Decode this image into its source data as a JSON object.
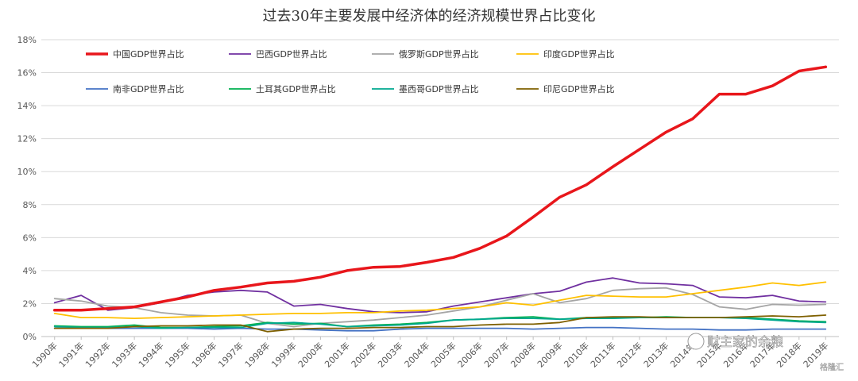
{
  "chart_data": {
    "type": "line",
    "title": "过去30年主要发展中经济体的经济规模世界占比变化",
    "xlabel": "",
    "ylabel": "",
    "ylim": [
      0,
      18
    ],
    "y_ticks": [
      "0%",
      "2%",
      "4%",
      "6%",
      "8%",
      "10%",
      "12%",
      "14%",
      "16%",
      "18%"
    ],
    "grid": true,
    "legend_position": "top",
    "categories": [
      "1990年",
      "1991年",
      "1992年",
      "1993年",
      "1994年",
      "1995年",
      "1996年",
      "1997年",
      "1998年",
      "1999年",
      "2000年",
      "2001年",
      "2002年",
      "2003年",
      "2004年",
      "2005年",
      "2006年",
      "2007年",
      "2008年",
      "2009年",
      "2010年",
      "2011年",
      "2012年",
      "2013年",
      "2014年",
      "2015年",
      "2016年",
      "2017年",
      "2018年",
      "2019年"
    ],
    "series": [
      {
        "name": "中国GDP世界占比",
        "color": "#e8161b",
        "bold": true,
        "values": [
          1.6,
          1.6,
          1.7,
          1.8,
          2.1,
          2.4,
          2.8,
          3.0,
          3.25,
          3.35,
          3.6,
          4.0,
          4.2,
          4.25,
          4.5,
          4.8,
          5.35,
          6.1,
          7.25,
          8.45,
          9.2,
          10.3,
          11.35,
          12.4,
          13.2,
          14.7,
          14.7,
          15.2,
          16.1,
          16.35
        ]
      },
      {
        "name": "巴西GDP世界占比",
        "color": "#7030a0",
        "values": [
          2.05,
          2.5,
          1.6,
          1.75,
          2.05,
          2.5,
          2.7,
          2.8,
          2.7,
          1.85,
          1.95,
          1.7,
          1.5,
          1.45,
          1.5,
          1.85,
          2.1,
          2.35,
          2.6,
          2.75,
          3.3,
          3.55,
          3.25,
          3.2,
          3.1,
          2.4,
          2.35,
          2.5,
          2.15,
          2.1
        ]
      },
      {
        "name": "俄罗斯GDP世界占比",
        "color": "#a5a5a5",
        "values": [
          2.3,
          2.15,
          1.85,
          1.75,
          1.45,
          1.3,
          1.25,
          1.3,
          0.8,
          0.6,
          0.8,
          0.9,
          1.0,
          1.15,
          1.3,
          1.55,
          1.8,
          2.2,
          2.6,
          2.05,
          2.3,
          2.8,
          2.9,
          2.95,
          2.55,
          1.8,
          1.65,
          1.95,
          1.9,
          1.95
        ]
      },
      {
        "name": "印度GDP世界占比",
        "color": "#ffc000",
        "values": [
          1.4,
          1.15,
          1.15,
          1.1,
          1.15,
          1.2,
          1.25,
          1.3,
          1.35,
          1.4,
          1.4,
          1.45,
          1.45,
          1.55,
          1.6,
          1.7,
          1.8,
          2.05,
          1.9,
          2.2,
          2.5,
          2.45,
          2.4,
          2.4,
          2.6,
          2.8,
          3.0,
          3.25,
          3.1,
          3.3
        ]
      },
      {
        "name": "南非GDP世界占比",
        "color": "#4472c4",
        "values": [
          0.5,
          0.5,
          0.5,
          0.5,
          0.5,
          0.5,
          0.45,
          0.5,
          0.45,
          0.45,
          0.4,
          0.35,
          0.35,
          0.45,
          0.5,
          0.5,
          0.5,
          0.5,
          0.45,
          0.5,
          0.55,
          0.55,
          0.5,
          0.45,
          0.45,
          0.4,
          0.4,
          0.45,
          0.45,
          0.45
        ]
      },
      {
        "name": "土耳其GDP世界占比",
        "color": "#00b050",
        "values": [
          0.65,
          0.6,
          0.6,
          0.7,
          0.55,
          0.55,
          0.6,
          0.65,
          0.85,
          0.75,
          0.8,
          0.6,
          0.7,
          0.75,
          0.85,
          1.0,
          1.05,
          1.15,
          1.2,
          1.05,
          1.15,
          1.15,
          1.15,
          1.2,
          1.15,
          1.15,
          1.15,
          1.05,
          0.95,
          0.9
        ]
      },
      {
        "name": "墨西哥GDP世界占比",
        "color": "#00a88f",
        "values": [
          0.6,
          0.55,
          0.55,
          0.6,
          0.5,
          0.55,
          0.55,
          0.55,
          0.8,
          0.85,
          0.75,
          0.6,
          0.65,
          0.7,
          0.8,
          1.0,
          1.05,
          1.1,
          1.1,
          1.05,
          1.1,
          1.1,
          1.15,
          1.15,
          1.15,
          1.15,
          1.1,
          1.0,
          0.9,
          0.85
        ]
      },
      {
        "name": "印尼GDP世界占比",
        "color": "#7f6000",
        "values": [
          0.5,
          0.5,
          0.5,
          0.6,
          0.65,
          0.65,
          0.7,
          0.7,
          0.3,
          0.45,
          0.5,
          0.5,
          0.55,
          0.55,
          0.6,
          0.6,
          0.7,
          0.75,
          0.75,
          0.85,
          1.15,
          1.2,
          1.2,
          1.15,
          1.15,
          1.15,
          1.2,
          1.25,
          1.2,
          1.3
        ]
      }
    ]
  },
  "watermark": {
    "text": "财主家的余粮",
    "sub": "格隆汇"
  }
}
